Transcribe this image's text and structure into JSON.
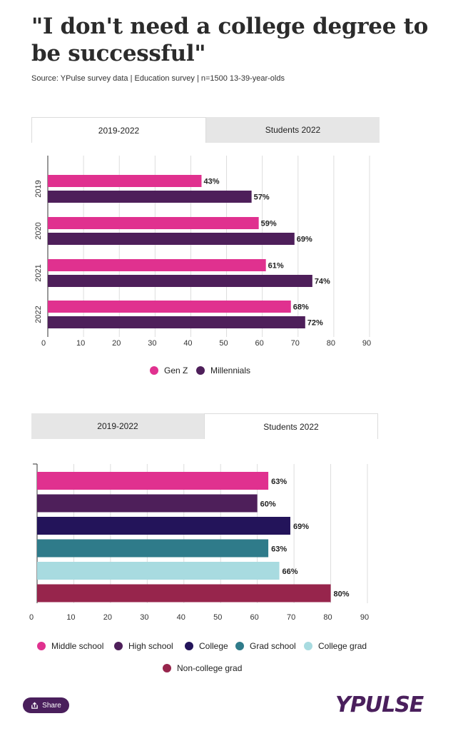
{
  "page": {
    "title": "\"I don't need a college degree to be successful\"",
    "source": "Source: YPulse survey data | Education survey | n=1500 13-39-year-olds"
  },
  "colors": {
    "gen_z": "#e0318f",
    "millennials": "#4e1f5a",
    "middle_school": "#e0318f",
    "high_school": "#4e1f5a",
    "college": "#23145a",
    "grad_school": "#2f7b8a",
    "college_grad": "#a8dbe0",
    "non_college_grad": "#97254c",
    "brand": "#4a1f5c"
  },
  "tabs_top": [
    {
      "label": "2019-2022",
      "active": true
    },
    {
      "label": "Students 2022",
      "active": false
    }
  ],
  "tabs_bottom": [
    {
      "label": "2019-2022",
      "active": false
    },
    {
      "label": "Students 2022",
      "active": true
    }
  ],
  "chart_data": [
    {
      "type": "bar",
      "orientation": "horizontal",
      "categories": [
        "2019",
        "2020",
        "2021",
        "2022"
      ],
      "series": [
        {
          "name": "Gen Z",
          "color": "#e0318f",
          "values": [
            43,
            59,
            61,
            68
          ]
        },
        {
          "name": "Millennials",
          "color": "#4e1f5a",
          "values": [
            57,
            69,
            74,
            72
          ]
        }
      ],
      "value_suffix": "%",
      "xlim": [
        0,
        90
      ],
      "xticks": [
        0,
        10,
        20,
        30,
        40,
        50,
        60,
        70,
        80,
        90
      ],
      "grid": true,
      "legend": [
        "Gen Z",
        "Millennials"
      ]
    },
    {
      "type": "bar",
      "orientation": "horizontal",
      "categories": [
        "Middle school",
        "High school",
        "College",
        "Grad school",
        "College grad",
        "Non-college grad"
      ],
      "values": [
        63,
        60,
        69,
        63,
        66,
        80
      ],
      "colors": [
        "#e0318f",
        "#4e1f5a",
        "#23145a",
        "#2f7b8a",
        "#a8dbe0",
        "#97254c"
      ],
      "value_suffix": "%",
      "xlim": [
        0,
        90
      ],
      "xticks": [
        0,
        10,
        20,
        30,
        40,
        50,
        60,
        70,
        80,
        90
      ],
      "grid": true,
      "legend": [
        "Middle school",
        "High school",
        "College",
        "Grad school",
        "College grad",
        "Non-college grad"
      ]
    }
  ],
  "footer": {
    "share_label": "Share",
    "share_icon": "share-icon",
    "logo_text": "YPULSE"
  }
}
